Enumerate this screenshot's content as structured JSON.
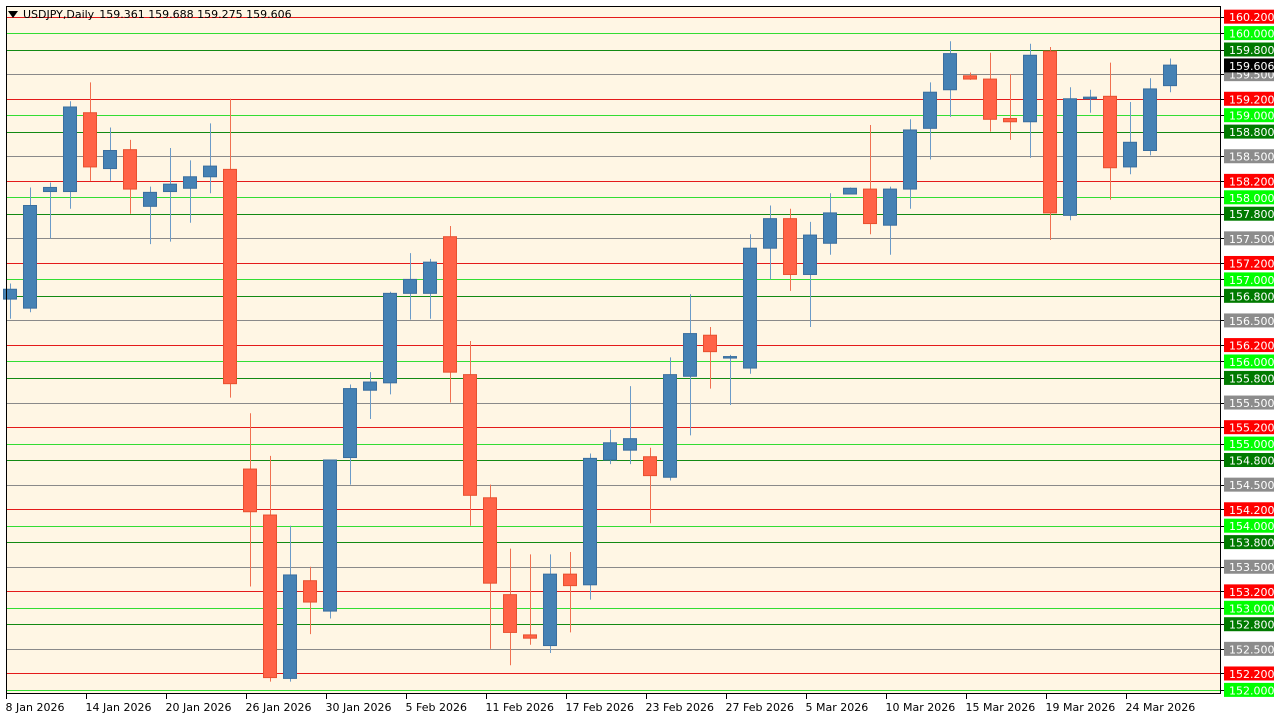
{
  "header": {
    "symbol": "USDJPY,Daily",
    "ohlc": "159.361 159.688 159.275 159.606"
  },
  "colors": {
    "background": "#FFF6E4",
    "bull": "#4682B4",
    "bear": "#FF6347",
    "wick_bull": "#6B9BC8",
    "wick_bear": "#F07050",
    "line_red": "#E41A1A",
    "line_lime": "#33DD33",
    "line_green": "#138A13",
    "line_gray": "#8A8A8A",
    "axis_bg": "#FFFFFF",
    "current_price_bg": "#000000"
  },
  "chart_data": {
    "type": "candlestick",
    "symbol": "USDJPY",
    "timeframe": "Daily",
    "current_price": 159.606,
    "ylim": [
      151.95,
      160.33
    ],
    "x_tick_labels": [
      "8 Jan 2026",
      "14 Jan 2026",
      "20 Jan 2026",
      "26 Jan 2026",
      "30 Jan 2026",
      "5 Feb 2026",
      "11 Feb 2026",
      "17 Feb 2026",
      "23 Feb 2026",
      "27 Feb 2026",
      "5 Mar 2026",
      "10 Mar 2026",
      "15 Mar 2026",
      "19 Mar 2026",
      "24 Mar 2026"
    ],
    "x_tick_bar_index": [
      0,
      4,
      8,
      12,
      16,
      20,
      24,
      28,
      32,
      36,
      40,
      44,
      48,
      52,
      56
    ],
    "levels": [
      {
        "price": 160.2,
        "label": "160.200",
        "kind": "red"
      },
      {
        "price": 160.0,
        "label": "160.000",
        "kind": "lime"
      },
      {
        "price": 159.8,
        "label": "159.800",
        "kind": "green"
      },
      {
        "price": 159.5,
        "label": "159.500",
        "kind": "gray"
      },
      {
        "price": 159.2,
        "label": "159.200",
        "kind": "red"
      },
      {
        "price": 159.0,
        "label": "159.000",
        "kind": "lime"
      },
      {
        "price": 158.8,
        "label": "158.800",
        "kind": "green"
      },
      {
        "price": 158.5,
        "label": "158.500",
        "kind": "gray"
      },
      {
        "price": 158.2,
        "label": "158.200",
        "kind": "red"
      },
      {
        "price": 158.0,
        "label": "158.000",
        "kind": "lime"
      },
      {
        "price": 157.8,
        "label": "157.800",
        "kind": "green"
      },
      {
        "price": 157.5,
        "label": "157.500",
        "kind": "gray"
      },
      {
        "price": 157.2,
        "label": "157.200",
        "kind": "red"
      },
      {
        "price": 157.0,
        "label": "157.000",
        "kind": "lime"
      },
      {
        "price": 156.8,
        "label": "156.800",
        "kind": "green"
      },
      {
        "price": 156.5,
        "label": "156.500",
        "kind": "gray"
      },
      {
        "price": 156.2,
        "label": "156.200",
        "kind": "red"
      },
      {
        "price": 156.0,
        "label": "156.000",
        "kind": "lime"
      },
      {
        "price": 155.8,
        "label": "155.800",
        "kind": "green"
      },
      {
        "price": 155.5,
        "label": "155.500",
        "kind": "gray"
      },
      {
        "price": 155.2,
        "label": "155.200",
        "kind": "red"
      },
      {
        "price": 155.0,
        "label": "155.000",
        "kind": "lime"
      },
      {
        "price": 154.8,
        "label": "154.800",
        "kind": "green"
      },
      {
        "price": 154.5,
        "label": "154.500",
        "kind": "gray"
      },
      {
        "price": 154.2,
        "label": "154.200",
        "kind": "red"
      },
      {
        "price": 154.0,
        "label": "154.000",
        "kind": "lime"
      },
      {
        "price": 153.8,
        "label": "153.800",
        "kind": "green"
      },
      {
        "price": 153.5,
        "label": "153.500",
        "kind": "gray"
      },
      {
        "price": 153.2,
        "label": "153.200",
        "kind": "red"
      },
      {
        "price": 153.0,
        "label": "153.000",
        "kind": "lime"
      },
      {
        "price": 152.8,
        "label": "152.800",
        "kind": "green"
      },
      {
        "price": 152.5,
        "label": "152.500",
        "kind": "gray"
      },
      {
        "price": 152.2,
        "label": "152.200",
        "kind": "red"
      },
      {
        "price": 152.0,
        "label": "152.000",
        "kind": "lime"
      }
    ],
    "candles": [
      {
        "o": 156.76,
        "h": 156.95,
        "l": 156.52,
        "c": 156.88
      },
      {
        "o": 156.65,
        "h": 158.12,
        "l": 156.6,
        "c": 157.9
      },
      {
        "o": 158.07,
        "h": 158.18,
        "l": 157.5,
        "c": 158.12
      },
      {
        "o": 158.07,
        "h": 159.17,
        "l": 157.86,
        "c": 159.1
      },
      {
        "o": 159.03,
        "h": 159.4,
        "l": 158.2,
        "c": 158.37
      },
      {
        "o": 158.35,
        "h": 158.85,
        "l": 158.2,
        "c": 158.57
      },
      {
        "o": 158.58,
        "h": 158.7,
        "l": 157.8,
        "c": 158.1
      },
      {
        "o": 157.89,
        "h": 158.13,
        "l": 157.43,
        "c": 158.06
      },
      {
        "o": 158.07,
        "h": 158.6,
        "l": 157.46,
        "c": 158.16
      },
      {
        "o": 158.11,
        "h": 158.45,
        "l": 157.69,
        "c": 158.25
      },
      {
        "o": 158.25,
        "h": 158.9,
        "l": 158.05,
        "c": 158.38
      },
      {
        "o": 158.34,
        "h": 159.2,
        "l": 155.56,
        "c": 155.73
      },
      {
        "o": 154.69,
        "h": 155.37,
        "l": 153.26,
        "c": 154.17
      },
      {
        "o": 154.13,
        "h": 154.85,
        "l": 152.1,
        "c": 152.15
      },
      {
        "o": 152.14,
        "h": 154.0,
        "l": 152.1,
        "c": 153.4
      },
      {
        "o": 153.33,
        "h": 153.5,
        "l": 152.68,
        "c": 153.07
      },
      {
        "o": 152.96,
        "h": 154.8,
        "l": 152.87,
        "c": 154.8
      },
      {
        "o": 154.83,
        "h": 155.72,
        "l": 154.5,
        "c": 155.67
      },
      {
        "o": 155.65,
        "h": 155.87,
        "l": 155.3,
        "c": 155.75
      },
      {
        "o": 155.74,
        "h": 156.85,
        "l": 155.6,
        "c": 156.83
      },
      {
        "o": 156.83,
        "h": 157.32,
        "l": 156.51,
        "c": 157.0
      },
      {
        "o": 156.83,
        "h": 157.25,
        "l": 156.52,
        "c": 157.21
      },
      {
        "o": 157.52,
        "h": 157.65,
        "l": 155.5,
        "c": 155.87
      },
      {
        "o": 155.84,
        "h": 156.25,
        "l": 154.0,
        "c": 154.37
      },
      {
        "o": 154.34,
        "h": 154.5,
        "l": 152.5,
        "c": 153.3
      },
      {
        "o": 153.16,
        "h": 153.72,
        "l": 152.3,
        "c": 152.7
      },
      {
        "o": 152.67,
        "h": 153.65,
        "l": 152.55,
        "c": 152.63
      },
      {
        "o": 152.54,
        "h": 153.65,
        "l": 152.45,
        "c": 153.41
      },
      {
        "o": 153.41,
        "h": 153.68,
        "l": 152.7,
        "c": 153.27
      },
      {
        "o": 153.28,
        "h": 154.88,
        "l": 153.1,
        "c": 154.82
      },
      {
        "o": 154.8,
        "h": 155.17,
        "l": 154.75,
        "c": 155.01
      },
      {
        "o": 154.92,
        "h": 155.7,
        "l": 154.75,
        "c": 155.06
      },
      {
        "o": 154.84,
        "h": 154.95,
        "l": 154.03,
        "c": 154.61
      },
      {
        "o": 154.59,
        "h": 156.05,
        "l": 154.55,
        "c": 155.84
      },
      {
        "o": 155.82,
        "h": 156.82,
        "l": 155.1,
        "c": 156.34
      },
      {
        "o": 156.32,
        "h": 156.42,
        "l": 155.67,
        "c": 156.12
      },
      {
        "o": 156.06,
        "h": 156.08,
        "l": 155.47,
        "c": 156.06
      },
      {
        "o": 155.92,
        "h": 157.55,
        "l": 155.85,
        "c": 157.38
      },
      {
        "o": 157.38,
        "h": 157.9,
        "l": 157.0,
        "c": 157.74
      },
      {
        "o": 157.74,
        "h": 157.86,
        "l": 156.86,
        "c": 157.06
      },
      {
        "o": 157.06,
        "h": 157.7,
        "l": 156.42,
        "c": 157.54
      },
      {
        "o": 157.44,
        "h": 158.05,
        "l": 157.3,
        "c": 157.81
      },
      {
        "o": 158.04,
        "h": 158.12,
        "l": 158.04,
        "c": 158.11
      },
      {
        "o": 158.1,
        "h": 158.88,
        "l": 157.55,
        "c": 157.68
      },
      {
        "o": 157.66,
        "h": 158.13,
        "l": 157.3,
        "c": 158.1
      },
      {
        "o": 158.1,
        "h": 158.95,
        "l": 157.86,
        "c": 158.82
      },
      {
        "o": 158.84,
        "h": 159.4,
        "l": 158.46,
        "c": 159.28
      },
      {
        "o": 159.31,
        "h": 159.9,
        "l": 158.98,
        "c": 159.75
      },
      {
        "o": 159.48,
        "h": 159.52,
        "l": 159.43,
        "c": 159.44
      },
      {
        "o": 159.44,
        "h": 159.76,
        "l": 158.8,
        "c": 158.95
      },
      {
        "o": 158.96,
        "h": 159.5,
        "l": 158.7,
        "c": 158.92
      },
      {
        "o": 158.92,
        "h": 159.87,
        "l": 158.48,
        "c": 159.73
      },
      {
        "o": 159.78,
        "h": 159.83,
        "l": 157.48,
        "c": 157.81
      },
      {
        "o": 157.78,
        "h": 159.34,
        "l": 157.72,
        "c": 159.2
      },
      {
        "o": 159.2,
        "h": 159.31,
        "l": 159.03,
        "c": 159.22
      },
      {
        "o": 159.23,
        "h": 159.64,
        "l": 157.97,
        "c": 158.36
      },
      {
        "o": 158.37,
        "h": 159.16,
        "l": 158.28,
        "c": 158.67
      },
      {
        "o": 158.57,
        "h": 159.45,
        "l": 158.51,
        "c": 159.32
      },
      {
        "o": 159.36,
        "h": 159.69,
        "l": 159.28,
        "c": 159.61
      }
    ]
  }
}
